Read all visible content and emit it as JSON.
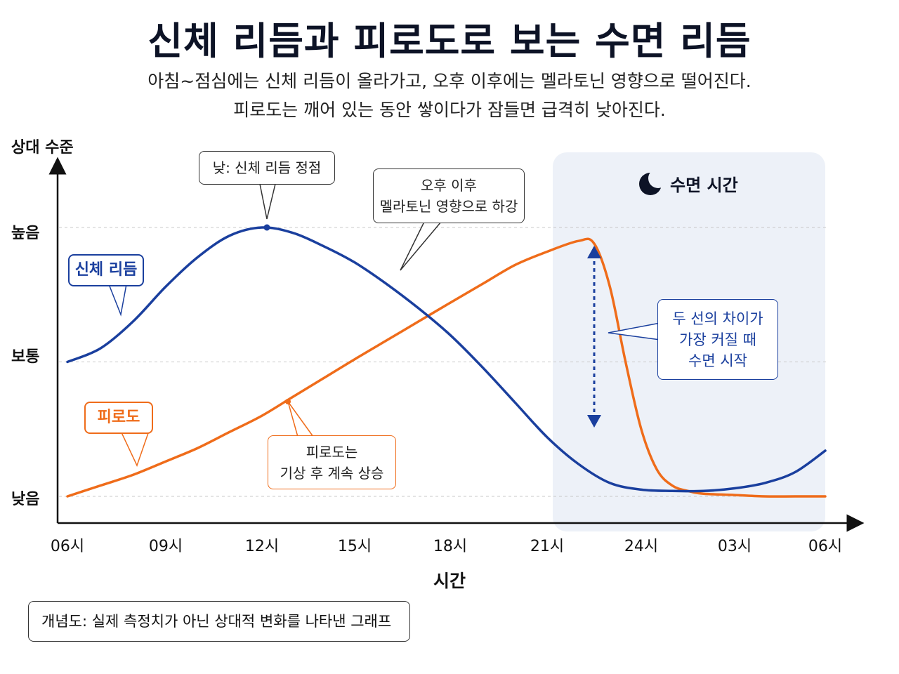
{
  "title": "신체 리듬과 피로도로 보는 수면 리듬",
  "subtitle_line1": "아침~점심에는 신체 리듬이 올라가고, 오후 이후에는 멜라토닌 영향으로 떨어진다.",
  "subtitle_line2": "피로도는 깨어 있는 동안 쌓이다가 잠들면 급격히 낮아진다.",
  "footnote": "개념도: 실제 측정치가 아닌 상대적 변화를 나타낸 그래프",
  "sleep_region_label": "수면 시간",
  "colors": {
    "body_rhythm": "#1a3f9e",
    "fatigue": "#ef6c1a",
    "sleep_bg": "#edf1f8"
  },
  "chart_data": {
    "type": "line",
    "xlabel": "시간",
    "ylabel": "상대 수준",
    "x_ticks": [
      "06시",
      "09시",
      "12시",
      "15시",
      "18시",
      "21시",
      "24시",
      "03시",
      "06시"
    ],
    "y_ticks": [
      "높음",
      "보통",
      "낮음"
    ],
    "x_hours": [
      6,
      9,
      12,
      15,
      18,
      21,
      24,
      27,
      30
    ],
    "ylim": [
      0,
      1
    ],
    "y_tick_values": [
      1.0,
      0.5,
      0.0
    ],
    "sleep_region": [
      21,
      30
    ],
    "series": [
      {
        "name": "신체 리듬",
        "x": [
          6,
          7,
          8,
          9,
          10,
          11,
          12,
          13,
          14,
          15,
          16,
          17,
          18,
          19,
          20,
          21,
          22,
          23,
          24,
          25,
          26,
          27,
          28,
          29,
          30
        ],
        "y": [
          0.5,
          0.55,
          0.65,
          0.78,
          0.89,
          0.97,
          1.0,
          0.98,
          0.93,
          0.87,
          0.79,
          0.7,
          0.6,
          0.48,
          0.35,
          0.22,
          0.12,
          0.05,
          0.025,
          0.02,
          0.02,
          0.03,
          0.05,
          0.09,
          0.17
        ]
      },
      {
        "name": "피로도",
        "x": [
          6,
          7,
          8,
          9,
          10,
          11,
          12,
          13,
          14,
          15,
          16,
          17,
          18,
          19,
          20,
          21,
          22,
          22.5,
          23,
          23.5,
          24,
          24.5,
          25,
          25.5,
          26,
          27,
          28,
          29,
          30
        ],
        "y": [
          0.0,
          0.04,
          0.08,
          0.13,
          0.18,
          0.24,
          0.3,
          0.37,
          0.44,
          0.51,
          0.58,
          0.65,
          0.72,
          0.79,
          0.86,
          0.91,
          0.95,
          0.94,
          0.78,
          0.5,
          0.25,
          0.1,
          0.04,
          0.02,
          0.01,
          0.005,
          0.0,
          0.0,
          0.0
        ]
      }
    ],
    "annotations": [
      {
        "id": "peak",
        "text": "낮: 신체 리듬 정점"
      },
      {
        "id": "melatonin",
        "text_line1": "오후 이후",
        "text_line2": "멜라토닌 영향으로 하강"
      },
      {
        "id": "fatigue_rise",
        "text_line1": "피로도는",
        "text_line2": "기상 후 계속 상승"
      },
      {
        "id": "gap",
        "text_line1": "두 선의 차이가",
        "text_line2": "가장 커질 때",
        "text_line3": "수면 시작"
      }
    ]
  }
}
